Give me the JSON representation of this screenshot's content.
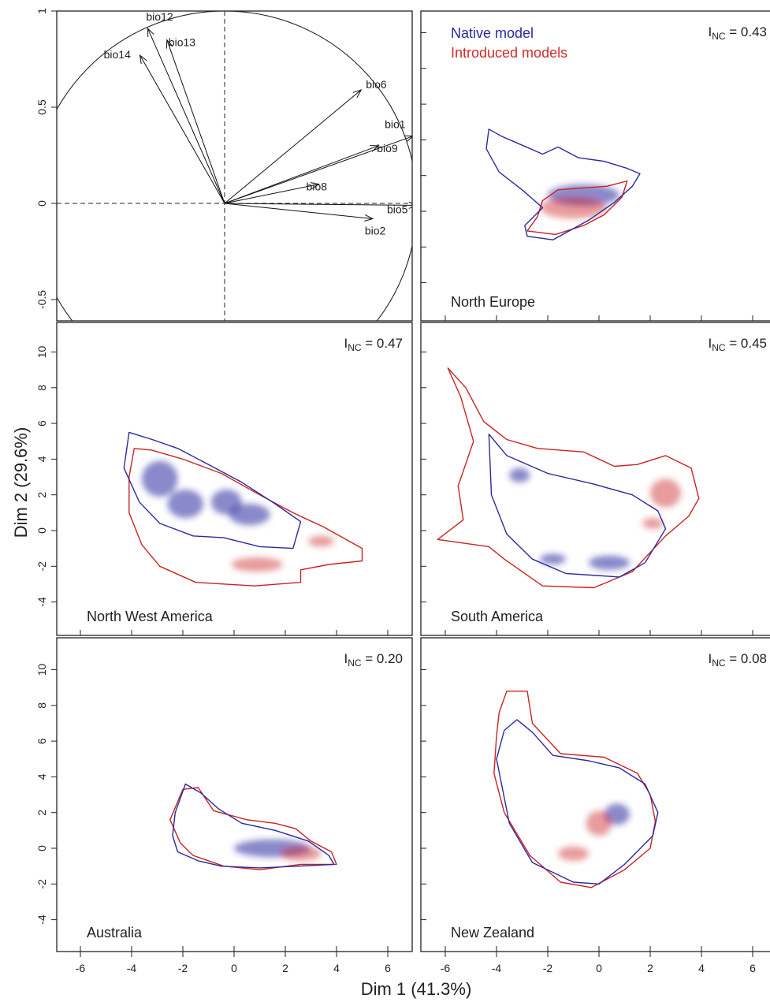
{
  "figure": {
    "xlabel": "Dim 1 (41.3%)",
    "ylabel": "Dim 2 (29.6%)",
    "legend": {
      "native": {
        "label": "Native model",
        "color": "#2a2aa0"
      },
      "introduced": {
        "label": "Introduced models",
        "color": "#d42a2a"
      }
    },
    "inc_prefix": "I",
    "inc_subscript": "NC",
    "colors": {
      "native": "#2a2aa0",
      "introduced": "#cc2222"
    }
  },
  "chart_data": [
    {
      "type": "scatter",
      "kind": "correlation-circle",
      "panel": "top-left",
      "title": "",
      "ylim": [
        -0.6,
        1.0
      ],
      "yticks": [
        "-0.5",
        "0",
        "0.5",
        "1"
      ],
      "vectors": [
        {
          "name": "bio12",
          "x": -0.4,
          "y": 0.91
        },
        {
          "name": "bio13",
          "x": -0.3,
          "y": 0.85
        },
        {
          "name": "bio14",
          "x": -0.44,
          "y": 0.77
        },
        {
          "name": "bio6",
          "x": 0.71,
          "y": 0.59
        },
        {
          "name": "bio1",
          "x": 0.98,
          "y": 0.35
        },
        {
          "name": "bio9",
          "x": 0.8,
          "y": 0.3
        },
        {
          "name": "bio8",
          "x": 0.49,
          "y": 0.1
        },
        {
          "name": "bio5",
          "x": 1.0,
          "y": -0.01
        },
        {
          "name": "bio2",
          "x": 0.77,
          "y": -0.08
        }
      ]
    },
    {
      "type": "area",
      "kind": "niche-density",
      "panel": "North Europe",
      "region": "North Europe",
      "inc": "0.43",
      "xlim": [
        -7,
        7
      ],
      "ylim": [
        -5.5,
        11.5
      ],
      "xticks": [
        -6,
        -4,
        -2,
        0,
        2,
        4,
        6
      ],
      "native_contour": [
        [
          -4.3,
          4.6
        ],
        [
          -3.8,
          4.2
        ],
        [
          -3.0,
          3.7
        ],
        [
          -2.2,
          3.2
        ],
        [
          -1.6,
          3.6
        ],
        [
          -0.8,
          3.0
        ],
        [
          0.2,
          2.8
        ],
        [
          1.1,
          2.4
        ],
        [
          1.6,
          2.1
        ],
        [
          1.3,
          1.4
        ],
        [
          0.6,
          0.5
        ],
        [
          -0.4,
          -0.5
        ],
        [
          -1.8,
          -1.6
        ],
        [
          -2.8,
          -1.4
        ],
        [
          -2.9,
          -0.8
        ],
        [
          -2.2,
          0.2
        ],
        [
          -3.0,
          1.2
        ],
        [
          -3.9,
          2.2
        ],
        [
          -4.4,
          3.5
        ]
      ],
      "introduced_contour": [
        [
          -2.2,
          0.6
        ],
        [
          -1.6,
          1.2
        ],
        [
          -0.7,
          1.3
        ],
        [
          0.3,
          1.4
        ],
        [
          1.1,
          1.7
        ],
        [
          0.9,
          0.8
        ],
        [
          0.2,
          -0.2
        ],
        [
          -0.6,
          -0.8
        ],
        [
          -1.7,
          -1.3
        ],
        [
          -2.8,
          -1.1
        ],
        [
          -2.4,
          -0.3
        ]
      ],
      "native_density": [
        {
          "x": -0.6,
          "y": 0.9,
          "sx": 1.4,
          "sy": 0.6
        }
      ],
      "introduced_density": [
        {
          "x": -1.0,
          "y": 0.2,
          "sx": 1.3,
          "sy": 0.6
        }
      ]
    },
    {
      "type": "area",
      "kind": "niche-density",
      "panel": "North West America",
      "region": "North West America",
      "inc": "0.47",
      "xlim": [
        -7,
        7
      ],
      "ylim": [
        -5.5,
        11.5
      ],
      "xticks": [
        -6,
        -4,
        -2,
        0,
        2,
        4,
        6
      ],
      "yticks": [
        -4,
        -2,
        0,
        2,
        4,
        6,
        8,
        10
      ],
      "native_contour": [
        [
          -4.1,
          5.5
        ],
        [
          -3.2,
          5.1
        ],
        [
          -2.2,
          4.6
        ],
        [
          -1.0,
          3.7
        ],
        [
          0.3,
          2.7
        ],
        [
          1.6,
          1.5
        ],
        [
          2.6,
          0.5
        ],
        [
          2.3,
          -1.0
        ],
        [
          1.0,
          -0.9
        ],
        [
          -0.4,
          -0.4
        ],
        [
          -1.6,
          -0.3
        ],
        [
          -2.9,
          0.4
        ],
        [
          -3.7,
          1.6
        ],
        [
          -4.3,
          3.5
        ]
      ],
      "introduced_contour": [
        [
          -3.9,
          4.6
        ],
        [
          -3.2,
          4.5
        ],
        [
          -2.0,
          4.0
        ],
        [
          -0.5,
          3.2
        ],
        [
          1.0,
          2.0
        ],
        [
          2.3,
          1.0
        ],
        [
          3.5,
          0.2
        ],
        [
          5.0,
          -1.0
        ],
        [
          5.0,
          -1.7
        ],
        [
          3.7,
          -1.9
        ],
        [
          2.6,
          -2.2
        ],
        [
          2.6,
          -2.9
        ],
        [
          0.8,
          -3.1
        ],
        [
          -1.5,
          -2.9
        ],
        [
          -2.9,
          -2.0
        ],
        [
          -3.6,
          -0.8
        ],
        [
          -4.1,
          1.0
        ],
        [
          -4.1,
          3.0
        ]
      ],
      "native_density": [
        {
          "x": -2.9,
          "y": 2.9,
          "sx": 0.7,
          "sy": 1.0
        },
        {
          "x": -1.9,
          "y": 1.5,
          "sx": 0.7,
          "sy": 0.8
        },
        {
          "x": -0.3,
          "y": 1.6,
          "sx": 0.6,
          "sy": 0.7
        },
        {
          "x": 0.6,
          "y": 0.9,
          "sx": 0.8,
          "sy": 0.6
        }
      ],
      "introduced_density": [
        {
          "x": 0.9,
          "y": -1.9,
          "sx": 1.0,
          "sy": 0.4
        },
        {
          "x": 3.4,
          "y": -0.6,
          "sx": 0.5,
          "sy": 0.3
        }
      ]
    },
    {
      "type": "area",
      "kind": "niche-density",
      "panel": "South America",
      "region": "South America",
      "inc": "0.45",
      "xlim": [
        -7,
        7
      ],
      "ylim": [
        -5.5,
        11.5
      ],
      "xticks": [
        -6,
        -4,
        -2,
        0,
        2,
        4,
        6
      ],
      "native_contour": [
        [
          -4.3,
          5.4
        ],
        [
          -3.6,
          4.2
        ],
        [
          -2.0,
          3.2
        ],
        [
          -0.2,
          2.6
        ],
        [
          1.3,
          2.0
        ],
        [
          2.3,
          1.1
        ],
        [
          2.6,
          0.1
        ],
        [
          1.8,
          -1.8
        ],
        [
          0.8,
          -2.6
        ],
        [
          -1.3,
          -2.4
        ],
        [
          -2.6,
          -1.6
        ],
        [
          -3.6,
          -0.2
        ],
        [
          -4.2,
          2.0
        ]
      ],
      "introduced_contour": [
        [
          -5.9,
          9.1
        ],
        [
          -5.2,
          8.0
        ],
        [
          -4.5,
          6.1
        ],
        [
          -3.6,
          5.1
        ],
        [
          -2.4,
          4.6
        ],
        [
          -0.6,
          4.4
        ],
        [
          0.6,
          3.6
        ],
        [
          1.5,
          3.7
        ],
        [
          2.6,
          4.2
        ],
        [
          3.6,
          3.5
        ],
        [
          3.9,
          1.8
        ],
        [
          3.5,
          0.8
        ],
        [
          2.6,
          -0.3
        ],
        [
          1.3,
          -2.3
        ],
        [
          -0.2,
          -3.2
        ],
        [
          -2.2,
          -3.1
        ],
        [
          -3.7,
          -1.6
        ],
        [
          -4.3,
          -0.9
        ],
        [
          -6.3,
          -0.5
        ],
        [
          -5.3,
          0.6
        ],
        [
          -5.5,
          2.5
        ],
        [
          -4.9,
          5.0
        ],
        [
          -5.4,
          7.5
        ]
      ],
      "native_density": [
        {
          "x": -3.1,
          "y": 3.1,
          "sx": 0.4,
          "sy": 0.4
        },
        {
          "x": 0.4,
          "y": -1.8,
          "sx": 0.8,
          "sy": 0.4
        },
        {
          "x": -1.8,
          "y": -1.6,
          "sx": 0.5,
          "sy": 0.3
        }
      ],
      "introduced_density": [
        {
          "x": 2.6,
          "y": 2.1,
          "sx": 0.6,
          "sy": 0.8
        },
        {
          "x": 2.1,
          "y": 0.4,
          "sx": 0.4,
          "sy": 0.3
        }
      ]
    },
    {
      "type": "area",
      "kind": "niche-density",
      "panel": "Australia",
      "region": "Australia",
      "inc": "0.20",
      "xlim": [
        -7,
        7
      ],
      "ylim": [
        -5.5,
        11.5
      ],
      "xticks": [
        -6,
        -4,
        -2,
        0,
        2,
        4,
        6
      ],
      "yticks": [
        -4,
        -2,
        0,
        2,
        4,
        6,
        8,
        10
      ],
      "native_contour": [
        [
          -1.9,
          3.6
        ],
        [
          -1.3,
          3.1
        ],
        [
          -0.6,
          2.2
        ],
        [
          0.3,
          1.4
        ],
        [
          1.6,
          1.0
        ],
        [
          2.9,
          0.4
        ],
        [
          3.7,
          -0.4
        ],
        [
          3.9,
          -0.9
        ],
        [
          2.5,
          -1.0
        ],
        [
          1.0,
          -1.1
        ],
        [
          -0.5,
          -1.0
        ],
        [
          -1.4,
          -0.7
        ],
        [
          -2.2,
          -0.2
        ],
        [
          -2.4,
          0.7
        ],
        [
          -2.3,
          2.0
        ]
      ],
      "introduced_contour": [
        [
          -2.0,
          3.3
        ],
        [
          -1.4,
          3.4
        ],
        [
          -0.8,
          2.1
        ],
        [
          0.5,
          1.6
        ],
        [
          1.6,
          1.4
        ],
        [
          2.4,
          1.1
        ],
        [
          3.0,
          0.4
        ],
        [
          3.8,
          -0.2
        ],
        [
          4.0,
          -0.9
        ],
        [
          2.6,
          -0.9
        ],
        [
          1.0,
          -1.2
        ],
        [
          -0.4,
          -1.0
        ],
        [
          -1.6,
          -0.4
        ],
        [
          -2.1,
          0.3
        ],
        [
          -2.5,
          1.6
        ]
      ],
      "native_density": [
        {
          "x": 1.5,
          "y": 0.0,
          "sx": 1.5,
          "sy": 0.5
        }
      ],
      "introduced_density": [
        {
          "x": 2.6,
          "y": -0.3,
          "sx": 0.8,
          "sy": 0.4
        }
      ]
    },
    {
      "type": "area",
      "kind": "niche-density",
      "panel": "New Zealand",
      "region": "New Zealand",
      "inc": "0.08",
      "xlim": [
        -7,
        7
      ],
      "ylim": [
        -5.5,
        11.5
      ],
      "xticks": [
        -6,
        -4,
        -2,
        0,
        2,
        4,
        6
      ],
      "native_contour": [
        [
          -3.7,
          6.6
        ],
        [
          -3.2,
          7.2
        ],
        [
          -2.6,
          6.5
        ],
        [
          -1.8,
          5.2
        ],
        [
          -0.4,
          4.9
        ],
        [
          0.8,
          4.5
        ],
        [
          1.8,
          3.6
        ],
        [
          2.3,
          2.0
        ],
        [
          2.1,
          0.7
        ],
        [
          1.0,
          -0.9
        ],
        [
          0.0,
          -2.0
        ],
        [
          -1.0,
          -1.9
        ],
        [
          -2.6,
          -0.8
        ],
        [
          -3.5,
          1.4
        ],
        [
          -4.0,
          5.0
        ]
      ],
      "introduced_contour": [
        [
          -3.9,
          7.6
        ],
        [
          -3.6,
          8.8
        ],
        [
          -2.8,
          8.8
        ],
        [
          -2.6,
          7.0
        ],
        [
          -1.5,
          5.3
        ],
        [
          0.2,
          5.1
        ],
        [
          1.5,
          4.2
        ],
        [
          2.0,
          3.0
        ],
        [
          2.2,
          1.5
        ],
        [
          2.0,
          0.0
        ],
        [
          1.0,
          -1.2
        ],
        [
          -0.3,
          -2.2
        ],
        [
          -1.5,
          -1.9
        ],
        [
          -2.7,
          -0.4
        ],
        [
          -3.7,
          2.0
        ],
        [
          -4.1,
          4.2
        ],
        [
          -4.0,
          6.3
        ]
      ],
      "native_density": [
        {
          "x": 0.7,
          "y": 1.9,
          "sx": 0.5,
          "sy": 0.6
        }
      ],
      "introduced_density": [
        {
          "x": 0.0,
          "y": 1.4,
          "sx": 0.5,
          "sy": 0.7
        },
        {
          "x": -1.0,
          "y": -0.3,
          "sx": 0.6,
          "sy": 0.4
        }
      ]
    }
  ]
}
